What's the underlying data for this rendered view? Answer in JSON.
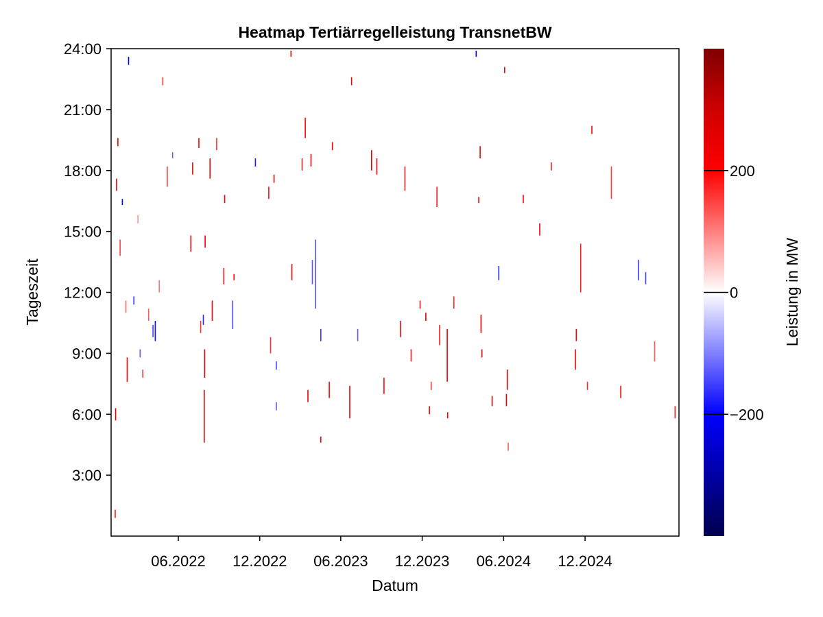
{
  "chart_data": {
    "type": "heatmap",
    "title": "Heatmap Tertiärregelleistung TransnetBW",
    "xlabel": "Datum",
    "ylabel": "Tageszeit",
    "x_range": [
      "2022-01-01",
      "2025-06-30"
    ],
    "x_ticks": [
      {
        "date": "2022-06-01",
        "label": "06.2022"
      },
      {
        "date": "2022-12-01",
        "label": "12.2022"
      },
      {
        "date": "2023-06-01",
        "label": "06.2023"
      },
      {
        "date": "2023-12-01",
        "label": "12.2023"
      },
      {
        "date": "2024-06-01",
        "label": "06.2024"
      },
      {
        "date": "2024-12-01",
        "label": "12.2024"
      }
    ],
    "y_range_hours": [
      0,
      24
    ],
    "y_ticks": [
      {
        "hour": 3,
        "label": "3:00"
      },
      {
        "hour": 6,
        "label": "6:00"
      },
      {
        "hour": 9,
        "label": "9:00"
      },
      {
        "hour": 12,
        "label": "12:00"
      },
      {
        "hour": 15,
        "label": "15:00"
      },
      {
        "hour": 18,
        "label": "18:00"
      },
      {
        "hour": 21,
        "label": "21:00"
      },
      {
        "hour": 24,
        "label": "24:00"
      }
    ],
    "grid": false,
    "colorbar": {
      "label": "Leistung in MW",
      "range": [
        -400,
        400
      ],
      "ticks": [
        {
          "value": -200,
          "label": "−200"
        },
        {
          "value": 0,
          "label": "0"
        },
        {
          "value": 200,
          "label": "200"
        }
      ],
      "colormap": [
        {
          "value": -400,
          "color": "#00004c"
        },
        {
          "value": -300,
          "color": "#0000a6"
        },
        {
          "value": -200,
          "color": "#0000ff"
        },
        {
          "value": 0,
          "color": "#ffffff"
        },
        {
          "value": 200,
          "color": "#ff0000"
        },
        {
          "value": 300,
          "color": "#cf0000"
        },
        {
          "value": 400,
          "color": "#7f0000"
        }
      ]
    },
    "events": [
      {
        "date": "2022-01-09",
        "start_hour": 0.9,
        "end_hour": 1.3,
        "value": 180
      },
      {
        "date": "2022-01-10",
        "start_hour": 5.7,
        "end_hour": 6.3,
        "value": 240
      },
      {
        "date": "2022-01-12",
        "start_hour": 17.0,
        "end_hour": 17.6,
        "value": 230
      },
      {
        "date": "2022-01-15",
        "start_hour": 19.2,
        "end_hour": 19.6,
        "value": 270
      },
      {
        "date": "2022-01-20",
        "start_hour": 13.8,
        "end_hour": 14.6,
        "value": 150
      },
      {
        "date": "2022-01-25",
        "start_hour": 16.3,
        "end_hour": 16.6,
        "value": -220
      },
      {
        "date": "2022-02-02",
        "start_hour": 11.0,
        "end_hour": 11.6,
        "value": 120
      },
      {
        "date": "2022-02-05",
        "start_hour": 7.6,
        "end_hour": 8.8,
        "value": 200
      },
      {
        "date": "2022-02-08",
        "start_hour": 23.2,
        "end_hour": 23.6,
        "value": -200
      },
      {
        "date": "2022-02-20",
        "start_hour": 11.4,
        "end_hour": 11.8,
        "value": -160
      },
      {
        "date": "2022-03-01",
        "start_hour": 15.4,
        "end_hour": 15.8,
        "value": 90
      },
      {
        "date": "2022-03-06",
        "start_hour": 8.8,
        "end_hour": 9.2,
        "value": -130
      },
      {
        "date": "2022-03-12",
        "start_hour": 7.8,
        "end_hour": 8.2,
        "value": 160
      },
      {
        "date": "2022-03-25",
        "start_hour": 10.6,
        "end_hour": 11.2,
        "value": 130
      },
      {
        "date": "2022-04-04",
        "start_hour": 9.8,
        "end_hour": 10.4,
        "value": -150
      },
      {
        "date": "2022-04-09",
        "start_hour": 9.6,
        "end_hour": 10.6,
        "value": -190
      },
      {
        "date": "2022-04-18",
        "start_hour": 12.0,
        "end_hour": 12.6,
        "value": 110
      },
      {
        "date": "2022-04-26",
        "start_hour": 22.2,
        "end_hour": 22.6,
        "value": 160
      },
      {
        "date": "2022-05-06",
        "start_hour": 17.2,
        "end_hour": 18.2,
        "value": 150
      },
      {
        "date": "2022-05-18",
        "start_hour": 18.6,
        "end_hour": 18.9,
        "value": -120
      },
      {
        "date": "2022-06-28",
        "start_hour": 14.0,
        "end_hour": 14.8,
        "value": 230
      },
      {
        "date": "2022-07-02",
        "start_hour": 17.8,
        "end_hour": 18.4,
        "value": 240
      },
      {
        "date": "2022-07-16",
        "start_hour": 19.1,
        "end_hour": 19.6,
        "value": 230
      },
      {
        "date": "2022-07-20",
        "start_hour": 10.0,
        "end_hour": 10.6,
        "value": 160
      },
      {
        "date": "2022-07-26",
        "start_hour": 10.4,
        "end_hour": 10.9,
        "value": -170
      },
      {
        "date": "2022-07-28",
        "start_hour": 4.6,
        "end_hour": 7.2,
        "value": 260
      },
      {
        "date": "2022-07-29",
        "start_hour": 7.8,
        "end_hour": 9.2,
        "value": 260
      },
      {
        "date": "2022-07-30",
        "start_hour": 14.2,
        "end_hour": 14.8,
        "value": 240
      },
      {
        "date": "2022-08-10",
        "start_hour": 17.6,
        "end_hour": 18.6,
        "value": 220
      },
      {
        "date": "2022-08-15",
        "start_hour": 10.6,
        "end_hour": 11.6,
        "value": 200
      },
      {
        "date": "2022-08-25",
        "start_hour": 19.0,
        "end_hour": 19.6,
        "value": 160
      },
      {
        "date": "2022-09-10",
        "start_hour": 12.4,
        "end_hour": 13.2,
        "value": 180
      },
      {
        "date": "2022-09-12",
        "start_hour": 16.4,
        "end_hour": 16.8,
        "value": 200
      },
      {
        "date": "2022-09-30",
        "start_hour": 10.2,
        "end_hour": 11.6,
        "value": -140
      },
      {
        "date": "2022-10-03",
        "start_hour": 12.6,
        "end_hour": 12.9,
        "value": 200
      },
      {
        "date": "2022-11-20",
        "start_hour": 18.2,
        "end_hour": 18.6,
        "value": -180
      },
      {
        "date": "2022-12-20",
        "start_hour": 16.6,
        "end_hour": 17.2,
        "value": 190
      },
      {
        "date": "2022-12-24",
        "start_hour": 9.0,
        "end_hour": 9.8,
        "value": 160
      },
      {
        "date": "2023-01-01",
        "start_hour": 17.4,
        "end_hour": 17.8,
        "value": 200
      },
      {
        "date": "2023-01-06",
        "start_hour": 8.2,
        "end_hour": 8.6,
        "value": -150
      },
      {
        "date": "2023-01-06",
        "start_hour": 6.2,
        "end_hour": 6.6,
        "value": -130
      },
      {
        "date": "2023-02-08",
        "start_hour": 23.6,
        "end_hour": 23.9,
        "value": 240
      },
      {
        "date": "2023-02-10",
        "start_hour": 12.6,
        "end_hour": 13.4,
        "value": 200
      },
      {
        "date": "2023-03-05",
        "start_hour": 18.0,
        "end_hour": 18.6,
        "value": 180
      },
      {
        "date": "2023-03-12",
        "start_hour": 19.6,
        "end_hour": 20.6,
        "value": 200
      },
      {
        "date": "2023-03-18",
        "start_hour": 6.6,
        "end_hour": 7.2,
        "value": 230
      },
      {
        "date": "2023-03-25",
        "start_hour": 18.2,
        "end_hour": 18.8,
        "value": 240
      },
      {
        "date": "2023-03-28",
        "start_hour": 12.4,
        "end_hour": 13.6,
        "value": -130
      },
      {
        "date": "2023-04-04",
        "start_hour": 11.2,
        "end_hour": 14.6,
        "value": -140
      },
      {
        "date": "2023-04-16",
        "start_hour": 4.6,
        "end_hour": 4.9,
        "value": 230
      },
      {
        "date": "2023-04-16",
        "start_hour": 9.6,
        "end_hour": 10.2,
        "value": -160
      },
      {
        "date": "2023-05-05",
        "start_hour": 6.8,
        "end_hour": 7.6,
        "value": 220
      },
      {
        "date": "2023-05-12",
        "start_hour": 19.0,
        "end_hour": 19.4,
        "value": 200
      },
      {
        "date": "2023-06-20",
        "start_hour": 5.8,
        "end_hour": 7.4,
        "value": 240
      },
      {
        "date": "2023-06-24",
        "start_hour": 22.2,
        "end_hour": 22.6,
        "value": 240
      },
      {
        "date": "2023-07-08",
        "start_hour": 9.6,
        "end_hour": 10.2,
        "value": -130
      },
      {
        "date": "2023-08-08",
        "start_hour": 18.0,
        "end_hour": 19.0,
        "value": 220
      },
      {
        "date": "2023-08-20",
        "start_hour": 17.8,
        "end_hour": 18.6,
        "value": 220
      },
      {
        "date": "2023-09-05",
        "start_hour": 7.0,
        "end_hour": 7.8,
        "value": 200
      },
      {
        "date": "2023-10-12",
        "start_hour": 9.8,
        "end_hour": 10.6,
        "value": 200
      },
      {
        "date": "2023-10-22",
        "start_hour": 17.0,
        "end_hour": 18.2,
        "value": 180
      },
      {
        "date": "2023-11-05",
        "start_hour": 8.6,
        "end_hour": 9.2,
        "value": 180
      },
      {
        "date": "2023-11-25",
        "start_hour": 11.2,
        "end_hour": 11.6,
        "value": 190
      },
      {
        "date": "2023-12-08",
        "start_hour": 10.6,
        "end_hour": 11.0,
        "value": 250
      },
      {
        "date": "2023-12-16",
        "start_hour": 6.0,
        "end_hour": 6.4,
        "value": 220
      },
      {
        "date": "2023-12-20",
        "start_hour": 7.2,
        "end_hour": 7.6,
        "value": 160
      },
      {
        "date": "2024-01-02",
        "start_hour": 16.2,
        "end_hour": 17.2,
        "value": 180
      },
      {
        "date": "2024-01-08",
        "start_hour": 9.4,
        "end_hour": 10.4,
        "value": 180
      },
      {
        "date": "2024-01-25",
        "start_hour": 7.6,
        "end_hour": 10.2,
        "value": 260
      },
      {
        "date": "2024-01-26",
        "start_hour": 5.8,
        "end_hour": 6.1,
        "value": 250
      },
      {
        "date": "2024-02-09",
        "start_hour": 11.2,
        "end_hour": 11.8,
        "value": 170
      },
      {
        "date": "2024-03-30",
        "start_hour": 23.6,
        "end_hour": 23.9,
        "value": -200
      },
      {
        "date": "2024-04-05",
        "start_hour": 16.4,
        "end_hour": 16.7,
        "value": 240
      },
      {
        "date": "2024-04-08",
        "start_hour": 18.6,
        "end_hour": 19.2,
        "value": 230
      },
      {
        "date": "2024-04-10",
        "start_hour": 10.0,
        "end_hour": 10.9,
        "value": 230
      },
      {
        "date": "2024-04-12",
        "start_hour": 8.8,
        "end_hour": 9.2,
        "value": 240
      },
      {
        "date": "2024-05-05",
        "start_hour": 6.4,
        "end_hour": 6.9,
        "value": 240
      },
      {
        "date": "2024-05-20",
        "start_hour": 12.6,
        "end_hour": 13.3,
        "value": -170
      },
      {
        "date": "2024-06-02",
        "start_hour": 22.8,
        "end_hour": 23.1,
        "value": 240
      },
      {
        "date": "2024-06-06",
        "start_hour": 6.4,
        "end_hour": 7.0,
        "value": 250
      },
      {
        "date": "2024-06-08",
        "start_hour": 7.2,
        "end_hour": 8.2,
        "value": 240
      },
      {
        "date": "2024-06-10",
        "start_hour": 4.2,
        "end_hour": 4.6,
        "value": 130
      },
      {
        "date": "2024-07-14",
        "start_hour": 16.4,
        "end_hour": 16.8,
        "value": 200
      },
      {
        "date": "2024-08-20",
        "start_hour": 14.8,
        "end_hour": 15.4,
        "value": 240
      },
      {
        "date": "2024-09-15",
        "start_hour": 18.0,
        "end_hour": 18.4,
        "value": 180
      },
      {
        "date": "2024-11-08",
        "start_hour": 8.2,
        "end_hour": 9.2,
        "value": 230
      },
      {
        "date": "2024-11-10",
        "start_hour": 9.6,
        "end_hour": 10.2,
        "value": 200
      },
      {
        "date": "2024-11-20",
        "start_hour": 12.0,
        "end_hour": 14.4,
        "value": 180
      },
      {
        "date": "2024-12-05",
        "start_hour": 7.2,
        "end_hour": 7.6,
        "value": 170
      },
      {
        "date": "2024-12-15",
        "start_hour": 19.8,
        "end_hour": 20.2,
        "value": 200
      },
      {
        "date": "2025-01-28",
        "start_hour": 16.6,
        "end_hour": 18.2,
        "value": 150
      },
      {
        "date": "2025-02-18",
        "start_hour": 6.8,
        "end_hour": 7.4,
        "value": 200
      },
      {
        "date": "2025-03-30",
        "start_hour": 12.6,
        "end_hour": 13.6,
        "value": -160
      },
      {
        "date": "2025-04-15",
        "start_hour": 12.4,
        "end_hour": 13.0,
        "value": -150
      },
      {
        "date": "2025-05-05",
        "start_hour": 8.6,
        "end_hour": 9.6,
        "value": 130
      },
      {
        "date": "2025-06-20",
        "start_hour": 5.8,
        "end_hour": 6.4,
        "value": 180
      }
    ]
  }
}
